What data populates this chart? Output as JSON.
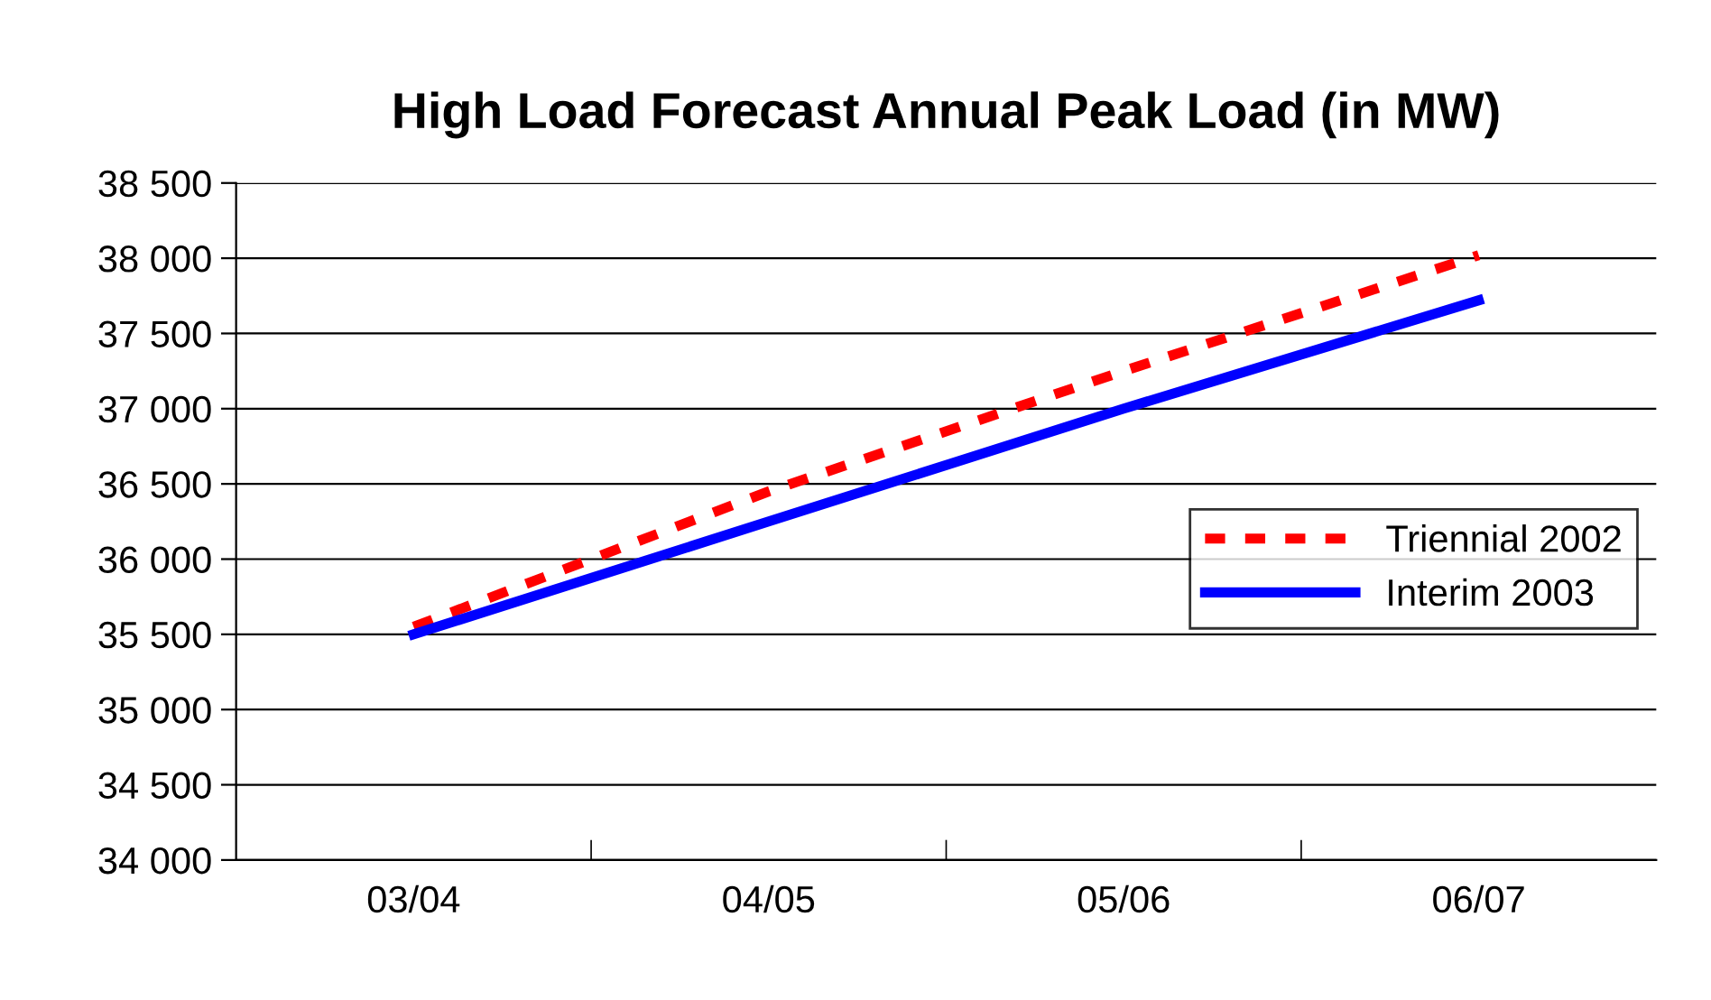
{
  "chart_data": {
    "type": "line",
    "title": "High Load Forecast Annual Peak Load (in MW)",
    "categories": [
      "03/04",
      "04/05",
      "05/06",
      "06/07"
    ],
    "series": [
      {
        "name": "Triennial 2002",
        "color": "#ff0000",
        "values": [
          35550,
          36450,
          37250,
          38020
        ],
        "line_style": "dashed"
      },
      {
        "name": "Interim 2003",
        "color": "#0000ff",
        "values": [
          35500,
          36250,
          37000,
          37720
        ],
        "line_style": "solid"
      }
    ],
    "ylim": [
      34000,
      38500
    ],
    "yticks": [
      {
        "value": 34000,
        "label": "34 000"
      },
      {
        "value": 34500,
        "label": "34 500"
      },
      {
        "value": 35000,
        "label": "35 000"
      },
      {
        "value": 35500,
        "label": "35 500"
      },
      {
        "value": 36000,
        "label": "36 000"
      },
      {
        "value": 36500,
        "label": "36 500"
      },
      {
        "value": 37000,
        "label": "37 000"
      },
      {
        "value": 37500,
        "label": "37 500"
      },
      {
        "value": 38000,
        "label": "38 000"
      },
      {
        "value": 38500,
        "label": "38 500"
      }
    ],
    "grid": "y",
    "legend": "center right",
    "marker": "none"
  }
}
